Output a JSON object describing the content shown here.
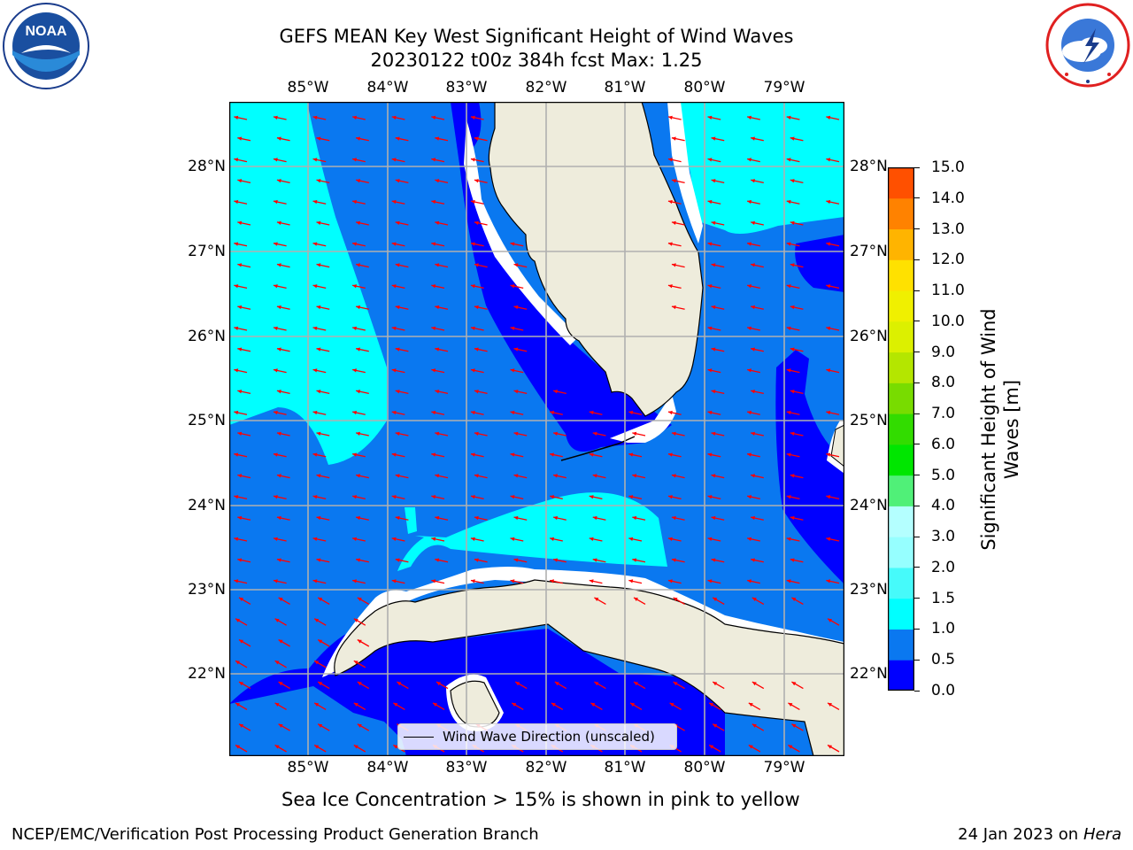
{
  "header": {
    "title_line1": "GEFS MEAN Key West Significant Height of Wind Waves",
    "title_line2": "20230122 t00z 384h fcst   Max: 1.25"
  },
  "logos": {
    "left": "noaa-logo",
    "left_text": "NOAA",
    "right": "national-weather-service-logo",
    "right_text": "NATIONAL WEATHER SERVICE"
  },
  "map": {
    "lon_labels": [
      "85°W",
      "84°W",
      "83°W",
      "82°W",
      "81°W",
      "80°W",
      "79°W"
    ],
    "lat_labels": [
      "28°N",
      "27°N",
      "26°N",
      "25°N",
      "24°N",
      "23°N",
      "22°N"
    ],
    "legend_label": "Wind Wave Direction (unscaled)",
    "arrow_color": "#ff0000",
    "land_color": "#eeecdc",
    "grid_color": "#b0b0b0"
  },
  "colorbar": {
    "label": "Significant Height of Wind Waves [m]",
    "tick_labels": [
      "0.0",
      "0.5",
      "1.0",
      "1.5",
      "2.0",
      "3.0",
      "4.0",
      "5.0",
      "6.0",
      "7.0",
      "8.0",
      "9.0",
      "10.0",
      "11.0",
      "12.0",
      "13.0",
      "14.0",
      "15.0"
    ],
    "colors": [
      "#0000ff",
      "#0a78f0",
      "#00ffff",
      "#46fafa",
      "#96ffff",
      "#b4ffff",
      "#50f078",
      "#00e600",
      "#32dc00",
      "#78dc00",
      "#b4e600",
      "#dcf000",
      "#f0f000",
      "#ffe100",
      "#ffb400",
      "#ff8200",
      "#ff5000",
      "#ff2800",
      "#ff0000"
    ]
  },
  "notes": {
    "sea_ice": "Sea Ice Concentration > 15% is shown in pink to yellow"
  },
  "footer": {
    "left": "NCEP/EMC/Verification Post Processing Product Generation Branch",
    "date": "24 Jan 2023 on ",
    "host": "Hera"
  }
}
